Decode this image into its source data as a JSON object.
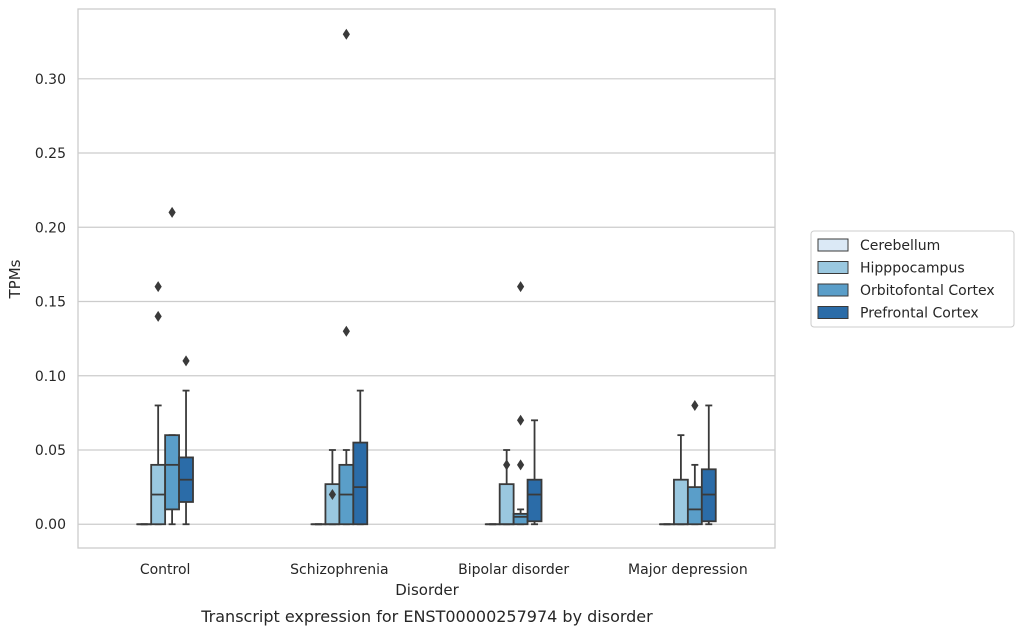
{
  "chart_data": {
    "type": "box",
    "title": "",
    "caption": "Transcript expression for ENST00000257974 by disorder",
    "xlabel": "Disorder",
    "ylabel": "TPMs",
    "ylim": [
      -0.016,
      0.347
    ],
    "yticks": [
      0.0,
      0.05,
      0.1,
      0.15,
      0.2,
      0.25,
      0.3
    ],
    "ytick_labels": [
      "0.00",
      "0.05",
      "0.10",
      "0.15",
      "0.20",
      "0.25",
      "0.30"
    ],
    "grid": true,
    "legend_position": "right",
    "categories": [
      "Control",
      "Schizophrenia",
      "Bipolar disorder",
      "Major depression"
    ],
    "series": [
      {
        "name": "Cerebellum",
        "color": "#dbe9f6",
        "boxes": [
          {
            "whislo": 0,
            "q1": 0,
            "med": 0,
            "q3": 0,
            "whishi": 0,
            "fliers": []
          },
          {
            "whislo": 0,
            "q1": 0,
            "med": 0,
            "q3": 0,
            "whishi": 0,
            "fliers": []
          },
          {
            "whislo": 0,
            "q1": 0,
            "med": 0,
            "q3": 0,
            "whishi": 0,
            "fliers": []
          },
          {
            "whislo": 0,
            "q1": 0,
            "med": 0,
            "q3": 0,
            "whishi": 0,
            "fliers": []
          }
        ]
      },
      {
        "name": "Hipppocampus",
        "color": "#9ac8e0",
        "boxes": [
          {
            "whislo": 0,
            "q1": 0,
            "med": 0.02,
            "q3": 0.04,
            "whishi": 0.08,
            "fliers": [
              0.16,
              0.14
            ]
          },
          {
            "whislo": 0,
            "q1": 0,
            "med": 0,
            "q3": 0.027,
            "whishi": 0.05,
            "fliers": [
              0.02
            ]
          },
          {
            "whislo": 0,
            "q1": 0,
            "med": 0,
            "q3": 0.027,
            "whishi": 0.05,
            "fliers": [
              0.04
            ]
          },
          {
            "whislo": 0,
            "q1": 0,
            "med": 0,
            "q3": 0.03,
            "whishi": 0.06,
            "fliers": []
          }
        ]
      },
      {
        "name": "Orbitofontal Cortex",
        "color": "#5a9ec9",
        "boxes": [
          {
            "whislo": 0,
            "q1": 0.01,
            "med": 0.04,
            "q3": 0.06,
            "whishi": 0.06,
            "fliers": [
              0.21
            ]
          },
          {
            "whislo": 0,
            "q1": 0,
            "med": 0.02,
            "q3": 0.04,
            "whishi": 0.05,
            "fliers": [
              0.33,
              0.13
            ]
          },
          {
            "whislo": 0,
            "q1": 0,
            "med": 0.005,
            "q3": 0.007,
            "whishi": 0.01,
            "fliers": [
              0.16,
              0.07,
              0.04
            ]
          },
          {
            "whislo": 0,
            "q1": 0,
            "med": 0.01,
            "q3": 0.025,
            "whishi": 0.04,
            "fliers": [
              0.08
            ]
          }
        ]
      },
      {
        "name": "Prefrontal Cortex",
        "color": "#2b6ca8",
        "boxes": [
          {
            "whislo": 0,
            "q1": 0.015,
            "med": 0.03,
            "q3": 0.045,
            "whishi": 0.09,
            "fliers": [
              0.11
            ]
          },
          {
            "whislo": 0,
            "q1": 0,
            "med": 0.025,
            "q3": 0.055,
            "whishi": 0.09,
            "fliers": []
          },
          {
            "whislo": 0,
            "q1": 0.002,
            "med": 0.02,
            "q3": 0.03,
            "whishi": 0.07,
            "fliers": []
          },
          {
            "whislo": 0,
            "q1": 0.002,
            "med": 0.02,
            "q3": 0.037,
            "whishi": 0.08,
            "fliers": []
          }
        ]
      }
    ]
  }
}
